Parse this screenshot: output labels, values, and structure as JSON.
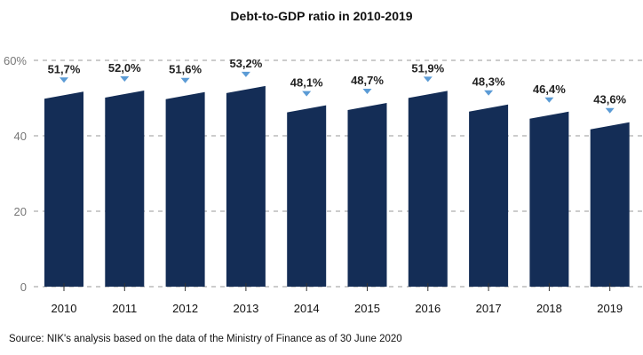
{
  "chart_data": {
    "type": "bar",
    "title": "Debt-to-GDP ratio in 2010-2019",
    "categories": [
      "2010",
      "2011",
      "2012",
      "2013",
      "2014",
      "2015",
      "2016",
      "2017",
      "2018",
      "2019"
    ],
    "values": [
      51.7,
      52.0,
      51.6,
      53.2,
      48.1,
      48.7,
      51.9,
      48.3,
      46.4,
      43.6
    ],
    "data_labels": [
      "51,7%",
      "52,0%",
      "51,6%",
      "53,2%",
      "48,1%",
      "48,7%",
      "51,9%",
      "48,3%",
      "46,4%",
      "43,6%"
    ],
    "yticks": [
      0,
      20,
      40,
      60
    ],
    "ytick_labels": [
      "0",
      "20",
      "40",
      "60%"
    ],
    "ylim": [
      0,
      60
    ],
    "xlabel": "",
    "ylabel": "",
    "grid": true,
    "bar_color": "#142d56",
    "marker_color": "#5b9bd5",
    "source": "Source: NIK's analysis based on the data of the Ministry of Finance as of 30 June 2020"
  }
}
